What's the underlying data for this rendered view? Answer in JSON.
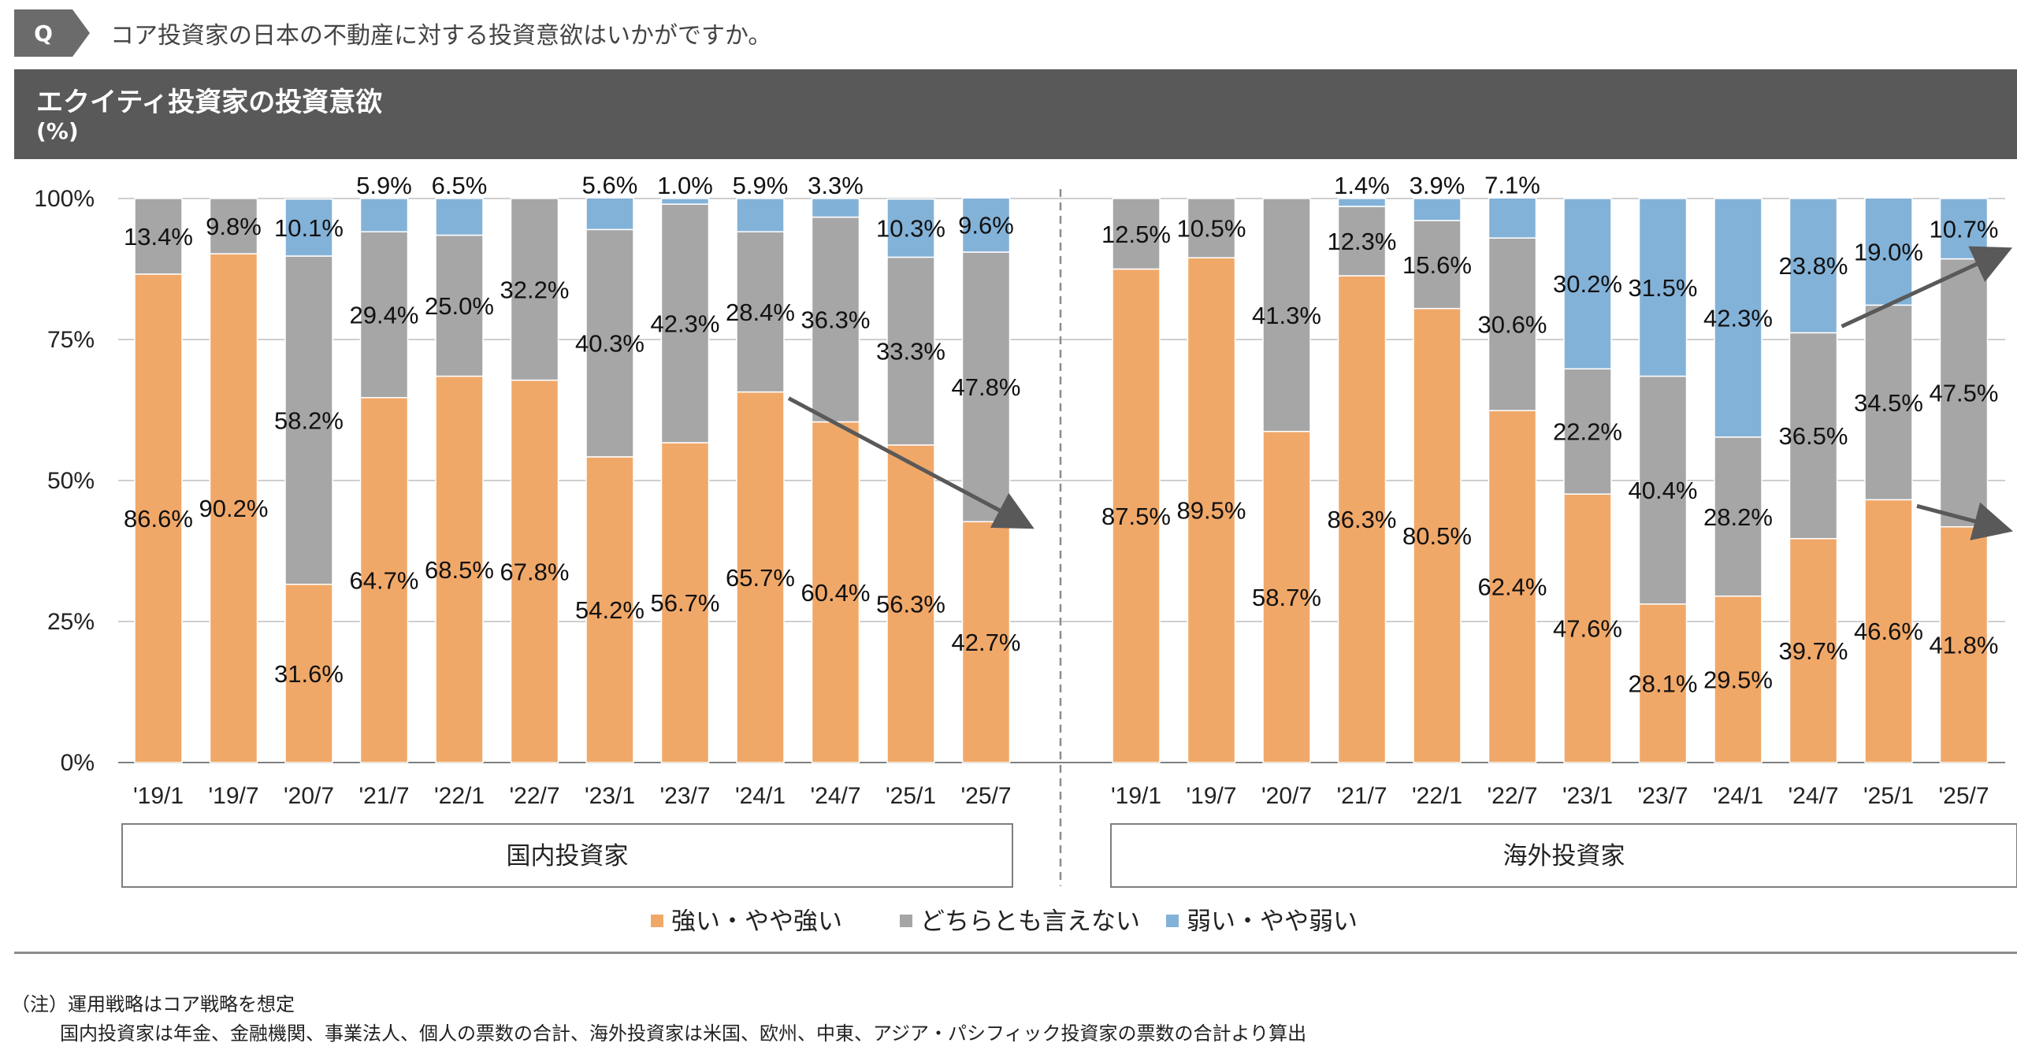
{
  "question": {
    "badge": "Q",
    "text": "コア投資家の日本の不動産に対する投資意欲はいかがですか。"
  },
  "header": {
    "title": "エクイティ投資家の投資意欲",
    "unit": "(%)"
  },
  "colors": {
    "strong": "#f0a869",
    "neutral": "#a6a6a6",
    "weak": "#83b2d8",
    "grid": "#bfbfbf",
    "arrow": "#595959"
  },
  "chart_data": {
    "type": "bar",
    "stacked": true,
    "ylim": [
      0,
      100
    ],
    "yticks": [
      "0%",
      "25%",
      "50%",
      "75%",
      "100%"
    ],
    "legend_position": "bottom",
    "legend": [
      "強い・やや強い",
      "どちらとも言えない",
      "弱い・やや弱い"
    ],
    "groups": [
      {
        "name": "国内投資家",
        "categories": [
          "'19/1",
          "'19/7",
          "'20/7",
          "'21/7",
          "'22/1",
          "'22/7",
          "'23/1",
          "'23/7",
          "'24/1",
          "'24/7",
          "'25/1",
          "'25/7"
        ],
        "series": [
          {
            "name": "強い・やや強い",
            "values": [
              86.6,
              90.2,
              31.6,
              64.7,
              68.5,
              67.8,
              54.2,
              56.7,
              65.7,
              60.4,
              56.3,
              42.7
            ],
            "labels": [
              "86.6%",
              "90.2%",
              "31.6%",
              "64.7%",
              "68.5%",
              "67.8%",
              "54.2%",
              "56.7%",
              "65.7%",
              "60.4%",
              "56.3%",
              "42.7%"
            ]
          },
          {
            "name": "どちらとも言えない",
            "values": [
              13.4,
              9.8,
              58.2,
              29.4,
              25.0,
              32.2,
              40.3,
              42.3,
              28.4,
              36.3,
              33.3,
              47.8
            ],
            "labels": [
              "13.4%",
              "9.8%",
              "58.2%",
              "29.4%",
              "25.0%",
              "32.2%",
              "40.3%",
              "42.3%",
              "28.4%",
              "36.3%",
              "33.3%",
              "47.8%"
            ]
          },
          {
            "name": "弱い・やや弱い",
            "values": [
              0,
              0,
              10.1,
              5.9,
              6.5,
              0,
              5.6,
              1.0,
              5.9,
              3.3,
              10.3,
              9.6
            ],
            "labels": [
              "",
              "",
              "10.1%",
              "5.9%",
              "6.5%",
              "",
              "5.6%",
              "1.0%",
              "5.9%",
              "3.3%",
              "10.3%",
              "9.6%"
            ]
          }
        ]
      },
      {
        "name": "海外投資家",
        "categories": [
          "'19/1",
          "'19/7",
          "'20/7",
          "'21/7",
          "'22/1",
          "'22/7",
          "'23/1",
          "'23/7",
          "'24/1",
          "'24/7",
          "'25/1",
          "'25/7"
        ],
        "series": [
          {
            "name": "強い・やや強い",
            "values": [
              87.5,
              89.5,
              58.7,
              86.3,
              80.5,
              62.4,
              47.6,
              28.1,
              29.5,
              39.7,
              46.6,
              41.8
            ],
            "labels": [
              "87.5%",
              "89.5%",
              "58.7%",
              "86.3%",
              "80.5%",
              "62.4%",
              "47.6%",
              "28.1%",
              "29.5%",
              "39.7%",
              "46.6%",
              "41.8%"
            ]
          },
          {
            "name": "どちらとも言えない",
            "values": [
              12.5,
              10.5,
              41.3,
              12.3,
              15.6,
              30.6,
              22.2,
              40.4,
              28.2,
              36.5,
              34.5,
              47.5
            ],
            "labels": [
              "12.5%",
              "10.5%",
              "41.3%",
              "12.3%",
              "15.6%",
              "30.6%",
              "22.2%",
              "40.4%",
              "28.2%",
              "36.5%",
              "34.5%",
              "47.5%"
            ]
          },
          {
            "name": "弱い・やや弱い",
            "values": [
              0,
              0,
              0,
              1.4,
              3.9,
              7.1,
              30.2,
              31.5,
              42.3,
              23.8,
              19.0,
              10.7
            ],
            "labels": [
              "",
              "",
              "",
              "1.4%",
              "3.9%",
              "7.1%",
              "30.2%",
              "31.5%",
              "42.3%",
              "23.8%",
              "19.0%",
              "10.7%"
            ]
          }
        ]
      }
    ],
    "trend_arrows": [
      {
        "group": 0,
        "series": 0,
        "from_index": 8,
        "to_index": 11
      },
      {
        "group": 1,
        "series": 0,
        "from_index": 10,
        "to_index": 11
      },
      {
        "group": 1,
        "series": 2,
        "from_index": 9,
        "to_index": 11
      }
    ]
  },
  "notes": {
    "line1": "（注）運用戦略はコア戦略を想定",
    "line2": "国内投資家は年金、金融機関、事業法人、個人の票数の合計、海外投資家は米国、欧州、中東、アジア・パシフィック投資家の票数の合計より算出"
  }
}
